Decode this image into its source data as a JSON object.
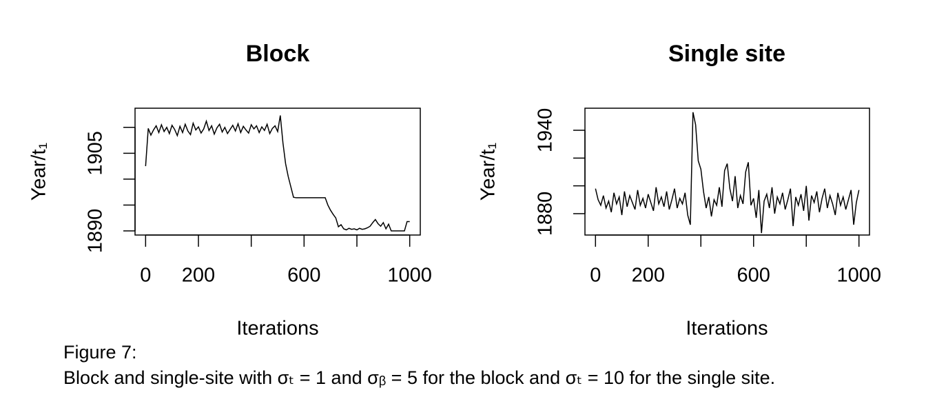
{
  "chart_data": [
    {
      "type": "line",
      "title": "Block",
      "x_label": "Iterations",
      "y_label": "Year/t₁",
      "xlim": [
        -40,
        1040
      ],
      "ylim": [
        1889.2,
        1913.7
      ],
      "xticks": [
        0,
        200,
        {
          "value": 400,
          "label": null
        },
        600,
        {
          "value": 800,
          "label": null
        },
        1000
      ],
      "yticks": [
        1890,
        {
          "value": 1895,
          "label": null
        },
        {
          "value": 1900,
          "label": null
        },
        1905,
        {
          "value": 1910,
          "label": null
        }
      ],
      "color": "#000000",
      "x": [
        0,
        10,
        20,
        30,
        40,
        50,
        60,
        70,
        80,
        90,
        100,
        110,
        120,
        130,
        140,
        150,
        160,
        170,
        180,
        190,
        200,
        210,
        220,
        230,
        240,
        250,
        260,
        270,
        280,
        290,
        300,
        310,
        320,
        330,
        340,
        350,
        360,
        370,
        380,
        390,
        400,
        410,
        420,
        430,
        440,
        450,
        460,
        470,
        480,
        490,
        500,
        510,
        520,
        530,
        540,
        550,
        560,
        570,
        580,
        590,
        600,
        610,
        620,
        630,
        640,
        650,
        660,
        670,
        680,
        690,
        700,
        710,
        720,
        730,
        740,
        750,
        760,
        770,
        780,
        790,
        800,
        810,
        820,
        830,
        840,
        850,
        860,
        870,
        880,
        890,
        900,
        910,
        920,
        930,
        940,
        950,
        960,
        970,
        980,
        990,
        1000
      ],
      "values": [
        1902.5,
        1909.8,
        1908.5,
        1909.5,
        1910.3,
        1909,
        1910.5,
        1909.2,
        1910,
        1908.8,
        1910.4,
        1909.6,
        1908.4,
        1910.2,
        1909,
        1910.6,
        1909.3,
        1908.6,
        1910.8,
        1909.5,
        1910.1,
        1908.9,
        1909.7,
        1911.2,
        1909.4,
        1910.3,
        1908.7,
        1909.9,
        1910.6,
        1909.1,
        1910,
        1908.8,
        1909.6,
        1910.4,
        1909.3,
        1910.7,
        1909,
        1910.2,
        1909.5,
        1908.9,
        1910.5,
        1909.7,
        1910.3,
        1909,
        1910.1,
        1909.4,
        1910.6,
        1908.8,
        1909.8,
        1910.3,
        1909.2,
        1912.3,
        1907,
        1903,
        1900.5,
        1898.5,
        1896.5,
        1896.4,
        1896.4,
        1896.4,
        1896.4,
        1896.4,
        1896.4,
        1896.4,
        1896.4,
        1896.4,
        1896.4,
        1896.4,
        1896.4,
        1895,
        1894,
        1893.2,
        1892.5,
        1890.8,
        1891.2,
        1890.4,
        1890.2,
        1890.5,
        1890.3,
        1890.4,
        1890.2,
        1890.5,
        1890.3,
        1890.4,
        1890.6,
        1890.9,
        1891.6,
        1892.2,
        1891.4,
        1890.9,
        1891.6,
        1890.4,
        1891.3,
        1890,
        1890,
        1890,
        1890,
        1890,
        1890,
        1891.8,
        1891.8
      ]
    },
    {
      "type": "line",
      "title": "Single site",
      "x_label": "Iterations",
      "y_label": "Year/t₁",
      "xlim": [
        -40,
        1040
      ],
      "ylim": [
        1864.6,
        1955.9
      ],
      "xticks": [
        0,
        200,
        {
          "value": 400,
          "label": null
        },
        600,
        {
          "value": 800,
          "label": null
        },
        1000
      ],
      "yticks": [
        1880,
        {
          "value": 1900,
          "label": null
        },
        {
          "value": 1920,
          "label": null
        },
        1940
      ],
      "color": "#000000",
      "x": [
        0,
        10,
        20,
        30,
        40,
        50,
        60,
        70,
        80,
        90,
        100,
        110,
        120,
        130,
        140,
        150,
        160,
        170,
        180,
        190,
        200,
        210,
        220,
        230,
        240,
        250,
        260,
        270,
        280,
        290,
        300,
        310,
        320,
        330,
        340,
        350,
        360,
        370,
        380,
        390,
        400,
        410,
        420,
        430,
        440,
        450,
        460,
        470,
        480,
        490,
        500,
        510,
        520,
        530,
        540,
        550,
        560,
        570,
        580,
        590,
        600,
        610,
        620,
        630,
        640,
        650,
        660,
        670,
        680,
        690,
        700,
        710,
        720,
        730,
        740,
        750,
        760,
        770,
        780,
        790,
        800,
        810,
        820,
        830,
        840,
        850,
        860,
        870,
        880,
        890,
        900,
        910,
        920,
        930,
        940,
        950,
        960,
        970,
        980,
        990,
        1000
      ],
      "values": [
        1898,
        1890,
        1886,
        1893,
        1884,
        1889,
        1881,
        1895,
        1887,
        1892,
        1879,
        1896,
        1885,
        1893,
        1888,
        1883,
        1897,
        1886,
        1891,
        1884,
        1894,
        1888,
        1882,
        1899,
        1887,
        1892,
        1885,
        1896,
        1883,
        1890,
        1898,
        1884,
        1891,
        1887,
        1895,
        1879,
        1872,
        1953,
        1944,
        1918,
        1912,
        1896,
        1884,
        1892,
        1878,
        1890,
        1886,
        1899,
        1885,
        1911,
        1916,
        1898,
        1889,
        1907,
        1884,
        1893,
        1887,
        1910,
        1917,
        1886,
        1891,
        1877,
        1897,
        1866,
        1889,
        1894,
        1884,
        1899,
        1880,
        1892,
        1887,
        1895,
        1883,
        1890,
        1898,
        1871,
        1892,
        1886,
        1894,
        1882,
        1900,
        1875,
        1893,
        1888,
        1896,
        1881,
        1891,
        1898,
        1884,
        1893,
        1887,
        1879,
        1895,
        1886,
        1892,
        1883,
        1890,
        1897,
        1872,
        1888,
        1897
      ]
    }
  ],
  "caption": {
    "label": "Figure 7:",
    "text": "Block and single-site with  σₜ = 1  and  σᵦ = 5  for the block and  σₜ = 10  for the single site."
  }
}
